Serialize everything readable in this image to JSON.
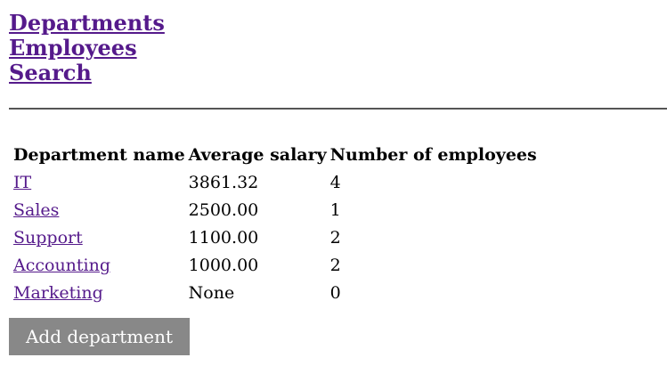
{
  "nav": {
    "items": [
      {
        "label": "Departments"
      },
      {
        "label": "Employees"
      },
      {
        "label": "Search"
      }
    ]
  },
  "table": {
    "headers": [
      "Department name",
      "Average salary",
      "Number of employees"
    ],
    "rows": [
      {
        "name": "IT",
        "avg_salary": "3861.32",
        "num_employees": "4"
      },
      {
        "name": "Sales",
        "avg_salary": "2500.00",
        "num_employees": "1"
      },
      {
        "name": "Support",
        "avg_salary": "1100.00",
        "num_employees": "2"
      },
      {
        "name": "Accounting",
        "avg_salary": "1000.00",
        "num_employees": "2"
      },
      {
        "name": "Marketing",
        "avg_salary": "None",
        "num_employees": "0"
      }
    ]
  },
  "actions": {
    "add_department_label": "Add department"
  },
  "colors": {
    "link": "#551a8b",
    "button_bg": "#888888",
    "button_text": "#ffffff",
    "divider": "#555555"
  }
}
